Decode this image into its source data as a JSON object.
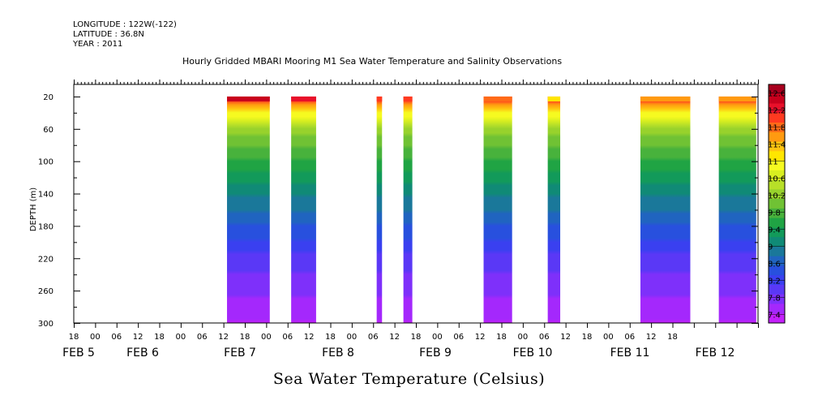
{
  "header": {
    "longitude": "LONGITUDE : 122W(-122)",
    "latitude": "LATITUDE : 36.8N",
    "year": "YEAR : 2011"
  },
  "chart_data": {
    "type": "heatmap",
    "title": "Hourly Gridded MBARI Mooring M1 Sea Water Temperature and Salinity Observations",
    "xlabel": "Sea Water Temperature (Celsius)",
    "ylabel": "DEPTH (m)",
    "x_range_hours_from_feb5_00": [
      -6,
      186
    ],
    "ylim": [
      300,
      5
    ],
    "y_ticks": [
      20,
      60,
      100,
      140,
      180,
      220,
      260,
      300
    ],
    "x_tick_labels": [
      "18",
      "00",
      "06",
      "12",
      "18",
      "00",
      "06",
      "12",
      "18",
      "00",
      "06",
      "12",
      "18",
      "00",
      "06",
      "12",
      "18",
      "00",
      "06",
      "12",
      "18",
      "00",
      "06",
      "12",
      "18",
      "00",
      "06",
      "12",
      "18"
    ],
    "date_labels": [
      "FEB  5",
      "FEB  6",
      "FEB  7",
      "FEB  8",
      "FEB  9",
      "FEB 10",
      "FEB 11",
      "FEB 12"
    ],
    "legend": {
      "position": "right",
      "levels": [
        "12.6",
        "12.2",
        "11.8",
        "11.4",
        "11",
        "10.6",
        "10.2",
        "9.8",
        "9.4",
        "9",
        "8.6",
        "8.2",
        "7.8",
        "7.4"
      ],
      "colors": [
        "#a8001e",
        "#c8001c",
        "#e8102a",
        "#ff3a20",
        "#ff6a18",
        "#ff9a10",
        "#ffc410",
        "#ffe600",
        "#f6fa20",
        "#d8ee20",
        "#b8e028",
        "#98d22c",
        "#70c234",
        "#48b23c",
        "#20a444",
        "#129a5a",
        "#108a76",
        "#1a789a",
        "#2064c0",
        "#2850de",
        "#3a40f0",
        "#5a38f6",
        "#7e30fa",
        "#a428fc",
        "#c420fc"
      ]
    },
    "data_segments_hours": [
      {
        "start": 37,
        "end": 49,
        "surface_temp": 12.4
      },
      {
        "start": 55,
        "end": 62,
        "surface_temp": 12.3
      },
      {
        "start": 79,
        "end": 80.5,
        "surface_temp": 12.0
      },
      {
        "start": 86.5,
        "end": 89,
        "surface_temp": 12.0
      },
      {
        "start": 109,
        "end": 117,
        "surface_temp": 11.8
      },
      {
        "start": 127,
        "end": 130.5,
        "surface_temp": 11.2
      },
      {
        "start": 153,
        "end": 167,
        "surface_temp": 11.6
      },
      {
        "start": 175,
        "end": 185.5,
        "surface_temp": 11.6
      }
    ],
    "temperature_profile": [
      {
        "depth": 20,
        "temp": 12.3
      },
      {
        "depth": 40,
        "temp": 11.0
      },
      {
        "depth": 60,
        "temp": 10.3
      },
      {
        "depth": 100,
        "temp": 9.7
      },
      {
        "depth": 140,
        "temp": 9.1
      },
      {
        "depth": 180,
        "temp": 8.6
      },
      {
        "depth": 220,
        "temp": 8.1
      },
      {
        "depth": 260,
        "temp": 7.8
      },
      {
        "depth": 300,
        "temp": 7.5
      }
    ]
  }
}
